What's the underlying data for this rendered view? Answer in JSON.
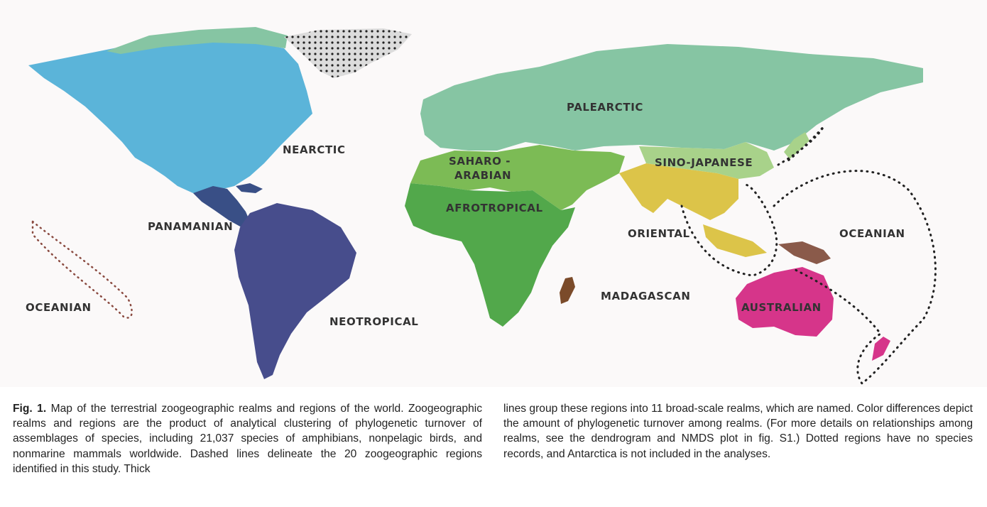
{
  "map": {
    "legend_colors": {
      "Nearctic": "#5bb4d9",
      "Palearctic": "#86c5a3",
      "Panamanian": "#394f86",
      "Neotropical": "#474d8c",
      "Saharo-Arabian": "#7cbb55",
      "Afrotropical": "#52a84b",
      "Sino-Japanese": "#a8d28a",
      "Oriental": "#dcc449",
      "Madagascan": "#7b4b2a",
      "Australian": "#d6358a",
      "Oceanian": "#8a5a4a",
      "Greenland (no records)": "#bfbfbf"
    },
    "labels": {
      "nearctic": "Nearctic",
      "palearctic": "Palearctic",
      "saharo_line1": "Saharo -",
      "saharo_line2": "Arabian",
      "sino_japanese": "Sino-Japanese",
      "afrotropical": "Afrotropical",
      "panamanian": "Panamanian",
      "oriental": "Oriental",
      "oceanian_right": "Oceanian",
      "oceanian_left": "Oceanian",
      "madagascan": "Madagascan",
      "neotropical": "Neotropical",
      "australian": "Australian"
    }
  },
  "caption": {
    "fig_label": "Fig. 1.",
    "col1_text": " Map of the terrestrial zoogeographic realms and regions of the world. Zoogeographic realms and regions are the product of analytical clustering of phylogenetic turnover of assemblages of species, including 21,037 species of amphibians, nonpelagic birds, and nonmarine mammals worldwide. Dashed lines delineate the 20 zoogeographic regions identified in this study. Thick",
    "col2_text": "lines group these regions into 11 broad-scale realms, which are named. Color differences depict the amount of phylogenetic turnover among realms. (For more details on relationships among realms, see the dendrogram and NMDS plot in fig. S1.) Dotted regions have no species records, and Antarctica is not included in the analyses."
  }
}
